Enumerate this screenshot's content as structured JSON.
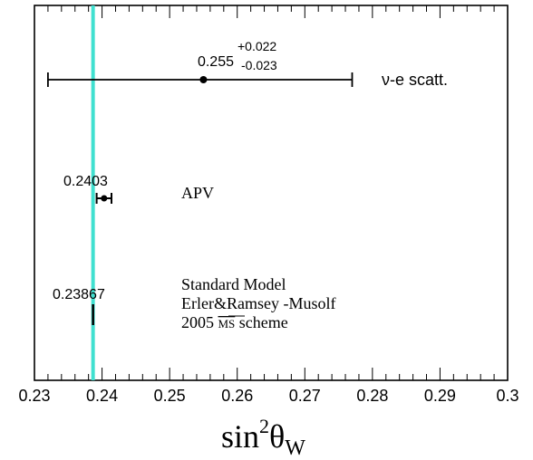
{
  "chart_data": {
    "type": "scatter",
    "xlim": [
      0.23,
      0.3
    ],
    "x_ticks": [
      "0.23",
      "0.24",
      "0.25",
      "0.26",
      "0.27",
      "0.28",
      "0.29",
      "0.3"
    ],
    "xlabel": {
      "base": "sin",
      "sup": "2",
      "theta": "θ",
      "sub": "W"
    },
    "grid": false,
    "reference_line": {
      "x": 0.23867,
      "color": "#40e0d0"
    },
    "points": [
      {
        "label": "ν-e scatt.",
        "value": 0.255,
        "value_label": "0.255",
        "err_plus": 0.022,
        "err_minus": 0.023,
        "err_plus_label": "+0.022",
        "err_minus_label": "-0.023"
      },
      {
        "label": "APV",
        "value": 0.2403,
        "value_label": "0.2403",
        "err_plus": 0.0011,
        "err_minus": 0.0011
      },
      {
        "label_lines": [
          "Standard Model",
          "Erler&Ramsey -Musolf",
          "2005 "
        ],
        "scheme_overline": "MS",
        "scheme_suffix": " scheme",
        "value": 0.23867,
        "value_label": "0.23867"
      }
    ]
  }
}
